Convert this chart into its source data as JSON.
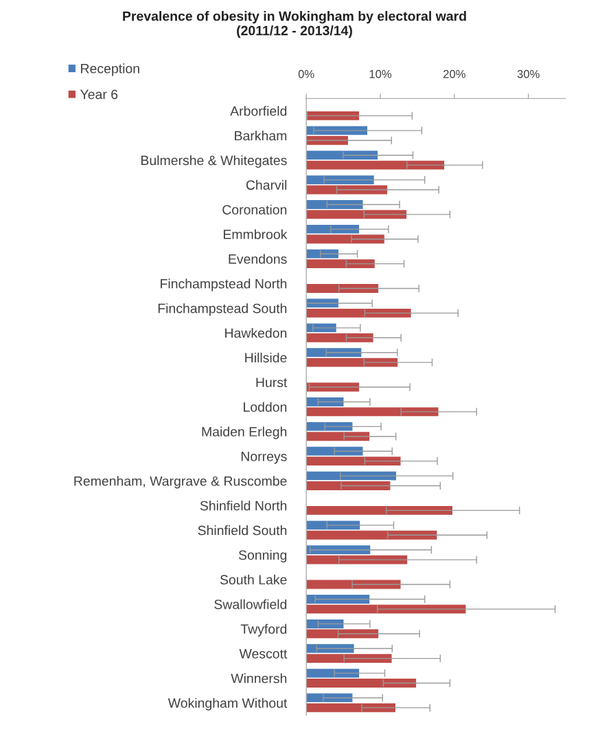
{
  "chart_data": {
    "type": "bar",
    "orientation": "horizontal",
    "title": "Prevalence of obesity in Wokingham by electoral ward\n(2011/12 - 2013/14)",
    "categories": [
      "Arborfield",
      "Barkham",
      "Bulmershe & Whitegates",
      "Charvil",
      "Coronation",
      "Emmbrook",
      "Evendons",
      "Finchampstead North",
      "Finchampstead South",
      "Hawkedon",
      "Hillside",
      "Hurst",
      "Loddon",
      "Maiden Erlegh",
      "Norreys",
      "Remenham, Wargrave & Ruscombe",
      "Shinfield North",
      "Shinfield South",
      "Sonning",
      "South Lake",
      "Swallowfield",
      "Twyford",
      "Wescott",
      "Winnersh",
      "Wokingham Without"
    ],
    "series": [
      {
        "name": "Reception",
        "color": "#4a7ebb",
        "values": [
          null,
          8.3,
          9.7,
          9.2,
          7.7,
          7.2,
          4.4,
          null,
          4.4,
          4.1,
          7.5,
          null,
          5.1,
          6.3,
          7.7,
          12.2,
          null,
          7.3,
          8.7,
          null,
          8.6,
          5.1,
          6.5,
          7.2,
          6.3
        ],
        "errors": [
          null,
          7.3,
          4.7,
          6.8,
          4.9,
          3.9,
          2.5,
          null,
          4.5,
          3.2,
          4.8,
          null,
          3.5,
          3.8,
          3.9,
          7.6,
          null,
          4.5,
          8.2,
          null,
          7.4,
          3.5,
          5.1,
          3.4,
          4.0
        ]
      },
      {
        "name": "Year 6",
        "color": "#be4b48",
        "values": [
          7.2,
          5.7,
          18.7,
          11.0,
          13.6,
          10.6,
          9.3,
          9.8,
          14.2,
          9.1,
          12.4,
          7.2,
          17.9,
          8.6,
          12.8,
          11.4,
          19.8,
          17.7,
          13.7,
          12.8,
          21.6,
          9.8,
          11.6,
          14.9,
          12.1
        ],
        "errors": [
          7.1,
          5.8,
          5.1,
          6.9,
          5.8,
          4.5,
          3.9,
          5.4,
          6.3,
          3.7,
          4.6,
          6.8,
          5.1,
          3.5,
          4.9,
          6.7,
          9.0,
          6.7,
          9.3,
          6.6,
          12.0,
          5.5,
          6.5,
          4.5,
          4.6
        ]
      }
    ],
    "xlim": [
      0,
      35
    ],
    "xticks": [
      {
        "value": 0,
        "label": "0%"
      },
      {
        "value": 10,
        "label": "10%"
      },
      {
        "value": 20,
        "label": "20%"
      },
      {
        "value": 30,
        "label": "30%"
      }
    ],
    "legend": "top left",
    "grid": false
  }
}
